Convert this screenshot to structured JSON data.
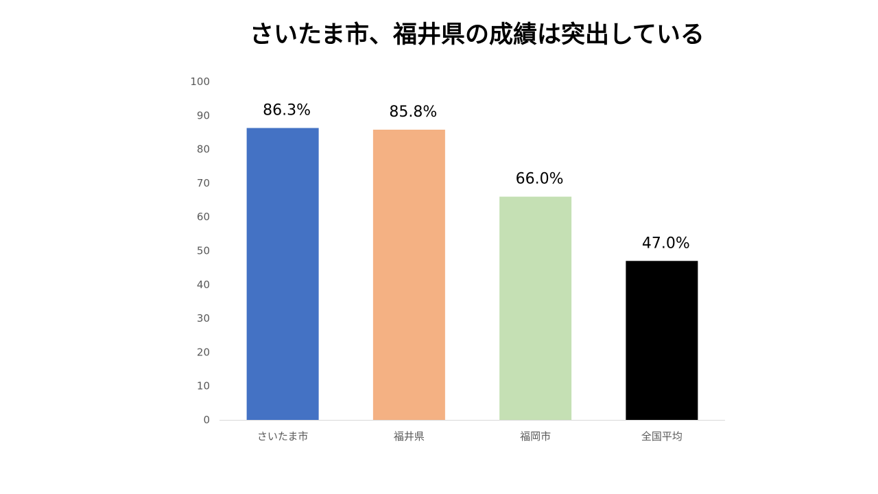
{
  "title": "さいたま市、福井県の成績は突出している",
  "chart_data": {
    "type": "bar",
    "title": "さいたま市、福井県の成績は突出している",
    "categories": [
      "さいたま市",
      "福井県",
      "福岡市",
      "全国平均"
    ],
    "values": [
      86.3,
      85.8,
      66.0,
      47.0
    ],
    "data_labels": [
      "86.3%",
      "85.8%",
      "66.0%",
      "47.0%"
    ],
    "colors": [
      "#4472C4",
      "#F4B183",
      "#C5E0B4",
      "#000000"
    ],
    "ylim": [
      0,
      100
    ],
    "yticks": [
      0,
      10,
      20,
      30,
      40,
      50,
      60,
      70,
      80,
      90,
      100
    ],
    "xlabel": "",
    "ylabel": "",
    "grid": false,
    "legend": "none"
  }
}
